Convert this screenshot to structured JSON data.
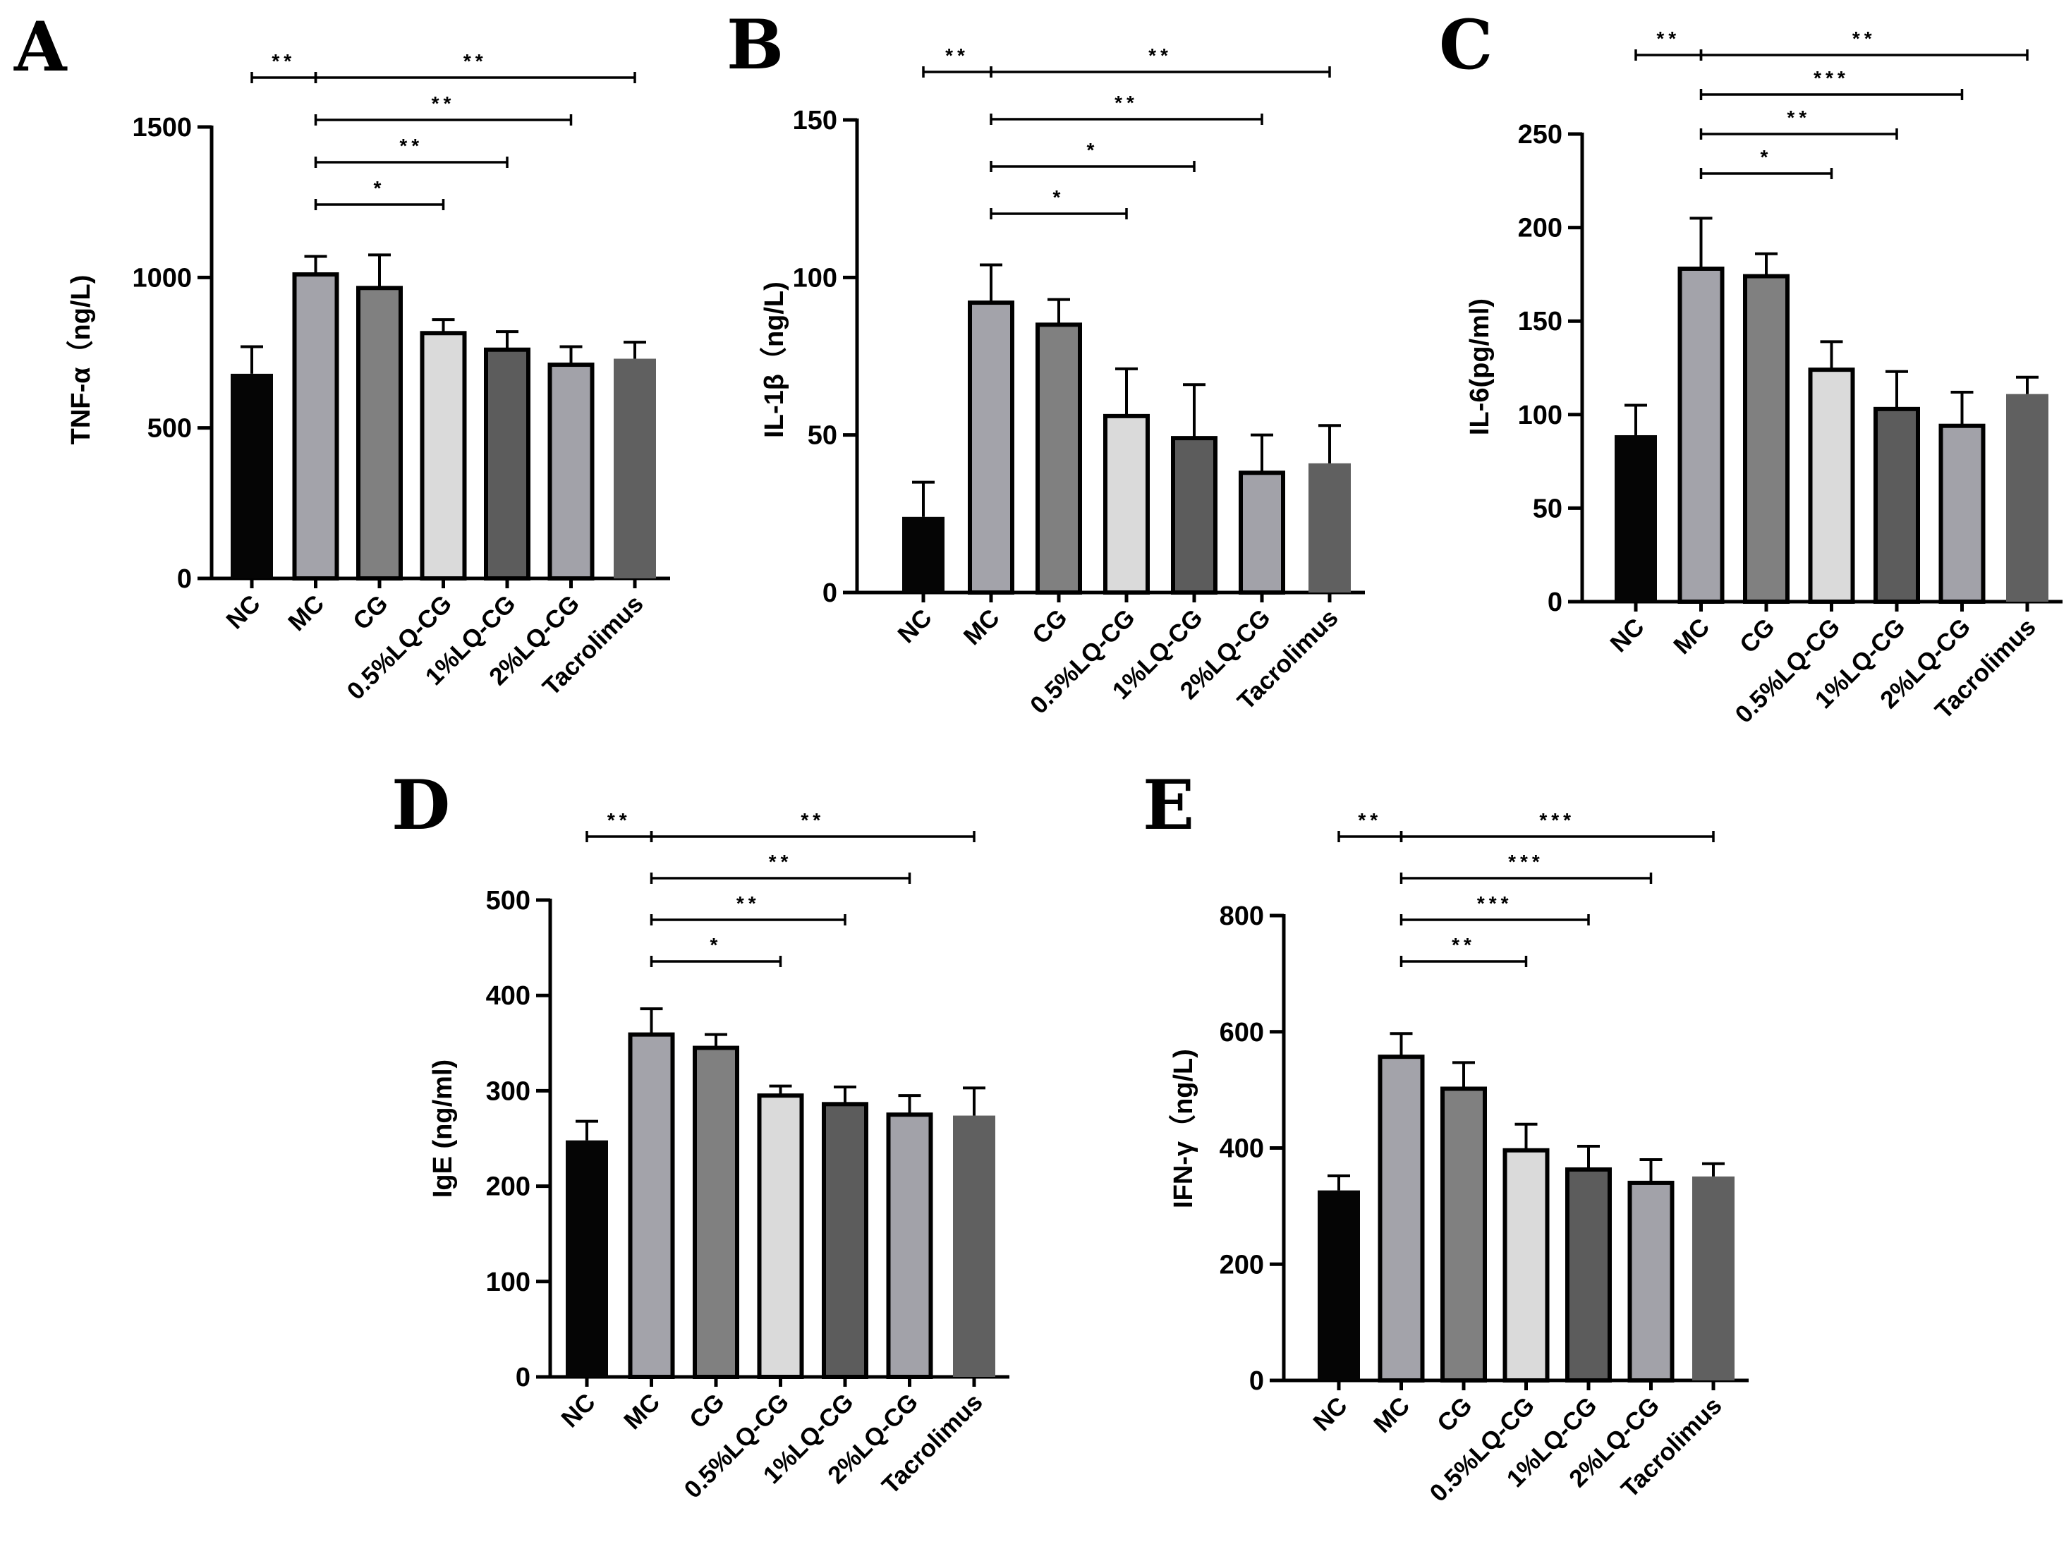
{
  "chart_data": [
    {
      "panel": "A",
      "type": "bar",
      "ylabel": "TNF-α（ng/L)",
      "categories": [
        "NC",
        "MC",
        "CG",
        "0.5%LQ-CG",
        "1%LQ-CG",
        "2%LQ-CG",
        "Tacrolimus"
      ],
      "values": [
        680,
        1010,
        965,
        815,
        760,
        710,
        730
      ],
      "errors": [
        90,
        60,
        110,
        45,
        60,
        60,
        55
      ],
      "ylim": [
        0,
        1500
      ],
      "yticks": [
        "0",
        "500",
        "1000",
        "1500"
      ],
      "significance": [
        {
          "label": "**",
          "from": 0,
          "to": 1
        },
        {
          "label": "**",
          "from": 1,
          "to": 6
        },
        {
          "label": "**",
          "from": 1,
          "to": 5
        },
        {
          "label": "**",
          "from": 1,
          "to": 4
        },
        {
          "label": "*",
          "from": 1,
          "to": 3
        }
      ]
    },
    {
      "panel": "B",
      "type": "bar",
      "ylabel": "IL-1β（ng/L)",
      "categories": [
        "NC",
        "MC",
        "CG",
        "0.5%LQ-CG",
        "1%LQ-CG",
        "2%LQ-CG",
        "Tacrolimus"
      ],
      "values": [
        24,
        92,
        85,
        56,
        49,
        38,
        41
      ],
      "errors": [
        11,
        12,
        8,
        15,
        17,
        12,
        12
      ],
      "ylim": [
        0,
        150
      ],
      "yticks": [
        "0",
        "50",
        "100",
        "150"
      ],
      "significance": [
        {
          "label": "**",
          "from": 0,
          "to": 1
        },
        {
          "label": "**",
          "from": 1,
          "to": 6
        },
        {
          "label": "**",
          "from": 1,
          "to": 5
        },
        {
          "label": "*",
          "from": 1,
          "to": 4
        },
        {
          "label": "*",
          "from": 1,
          "to": 3
        }
      ]
    },
    {
      "panel": "C",
      "type": "bar",
      "ylabel": "IL-6(pg/ml)",
      "categories": [
        "NC",
        "MC",
        "CG",
        "0.5%LQ-CG",
        "1%LQ-CG",
        "2%LQ-CG",
        "Tacrolimus"
      ],
      "values": [
        89,
        178,
        174,
        124,
        103,
        94,
        111
      ],
      "errors": [
        16,
        27,
        12,
        15,
        20,
        18,
        9
      ],
      "ylim": [
        0,
        250
      ],
      "yticks": [
        "0",
        "50",
        "100",
        "150",
        "200",
        "250"
      ],
      "significance": [
        {
          "label": "**",
          "from": 0,
          "to": 1
        },
        {
          "label": "**",
          "from": 1,
          "to": 6
        },
        {
          "label": "***",
          "from": 1,
          "to": 5
        },
        {
          "label": "**",
          "from": 1,
          "to": 4
        },
        {
          "label": "*",
          "from": 1,
          "to": 3
        }
      ]
    },
    {
      "panel": "D",
      "type": "bar",
      "ylabel": "IgE (ng/ml)",
      "categories": [
        "NC",
        "MC",
        "CG",
        "0.5%LQ-CG",
        "1%LQ-CG",
        "2%LQ-CG",
        "Tacrolimus"
      ],
      "values": [
        248,
        359,
        345,
        295,
        286,
        275,
        274
      ],
      "errors": [
        20,
        27,
        14,
        10,
        18,
        20,
        29
      ],
      "ylim": [
        0,
        500
      ],
      "yticks": [
        "0",
        "100",
        "200",
        "300",
        "400",
        "500"
      ],
      "significance": [
        {
          "label": "**",
          "from": 0,
          "to": 1
        },
        {
          "label": "**",
          "from": 1,
          "to": 6
        },
        {
          "label": "**",
          "from": 1,
          "to": 5
        },
        {
          "label": "**",
          "from": 1,
          "to": 4
        },
        {
          "label": "*",
          "from": 1,
          "to": 3
        }
      ]
    },
    {
      "panel": "E",
      "type": "bar",
      "ylabel": "IFN-γ（ng/L)",
      "categories": [
        "NC",
        "MC",
        "CG",
        "0.5%LQ-CG",
        "1%LQ-CG",
        "2%LQ-CG",
        "Tacrolimus"
      ],
      "values": [
        327,
        557,
        502,
        396,
        363,
        340,
        351
      ],
      "errors": [
        25,
        40,
        45,
        45,
        40,
        40,
        22
      ],
      "ylim": [
        0,
        800
      ],
      "yticks": [
        "0",
        "200",
        "400",
        "600",
        "800"
      ],
      "significance": [
        {
          "label": "**",
          "from": 0,
          "to": 1
        },
        {
          "label": "***",
          "from": 1,
          "to": 6
        },
        {
          "label": "***",
          "from": 1,
          "to": 5
        },
        {
          "label": "***",
          "from": 1,
          "to": 4
        },
        {
          "label": "**",
          "from": 1,
          "to": 3
        }
      ]
    }
  ],
  "colors": {
    "bar_fills": [
      "#050505",
      "#a3a3aa",
      "#808080",
      "#dadada",
      "#5c5c5c",
      "#a2a2a9",
      "#606060"
    ],
    "outline": "#000000"
  }
}
